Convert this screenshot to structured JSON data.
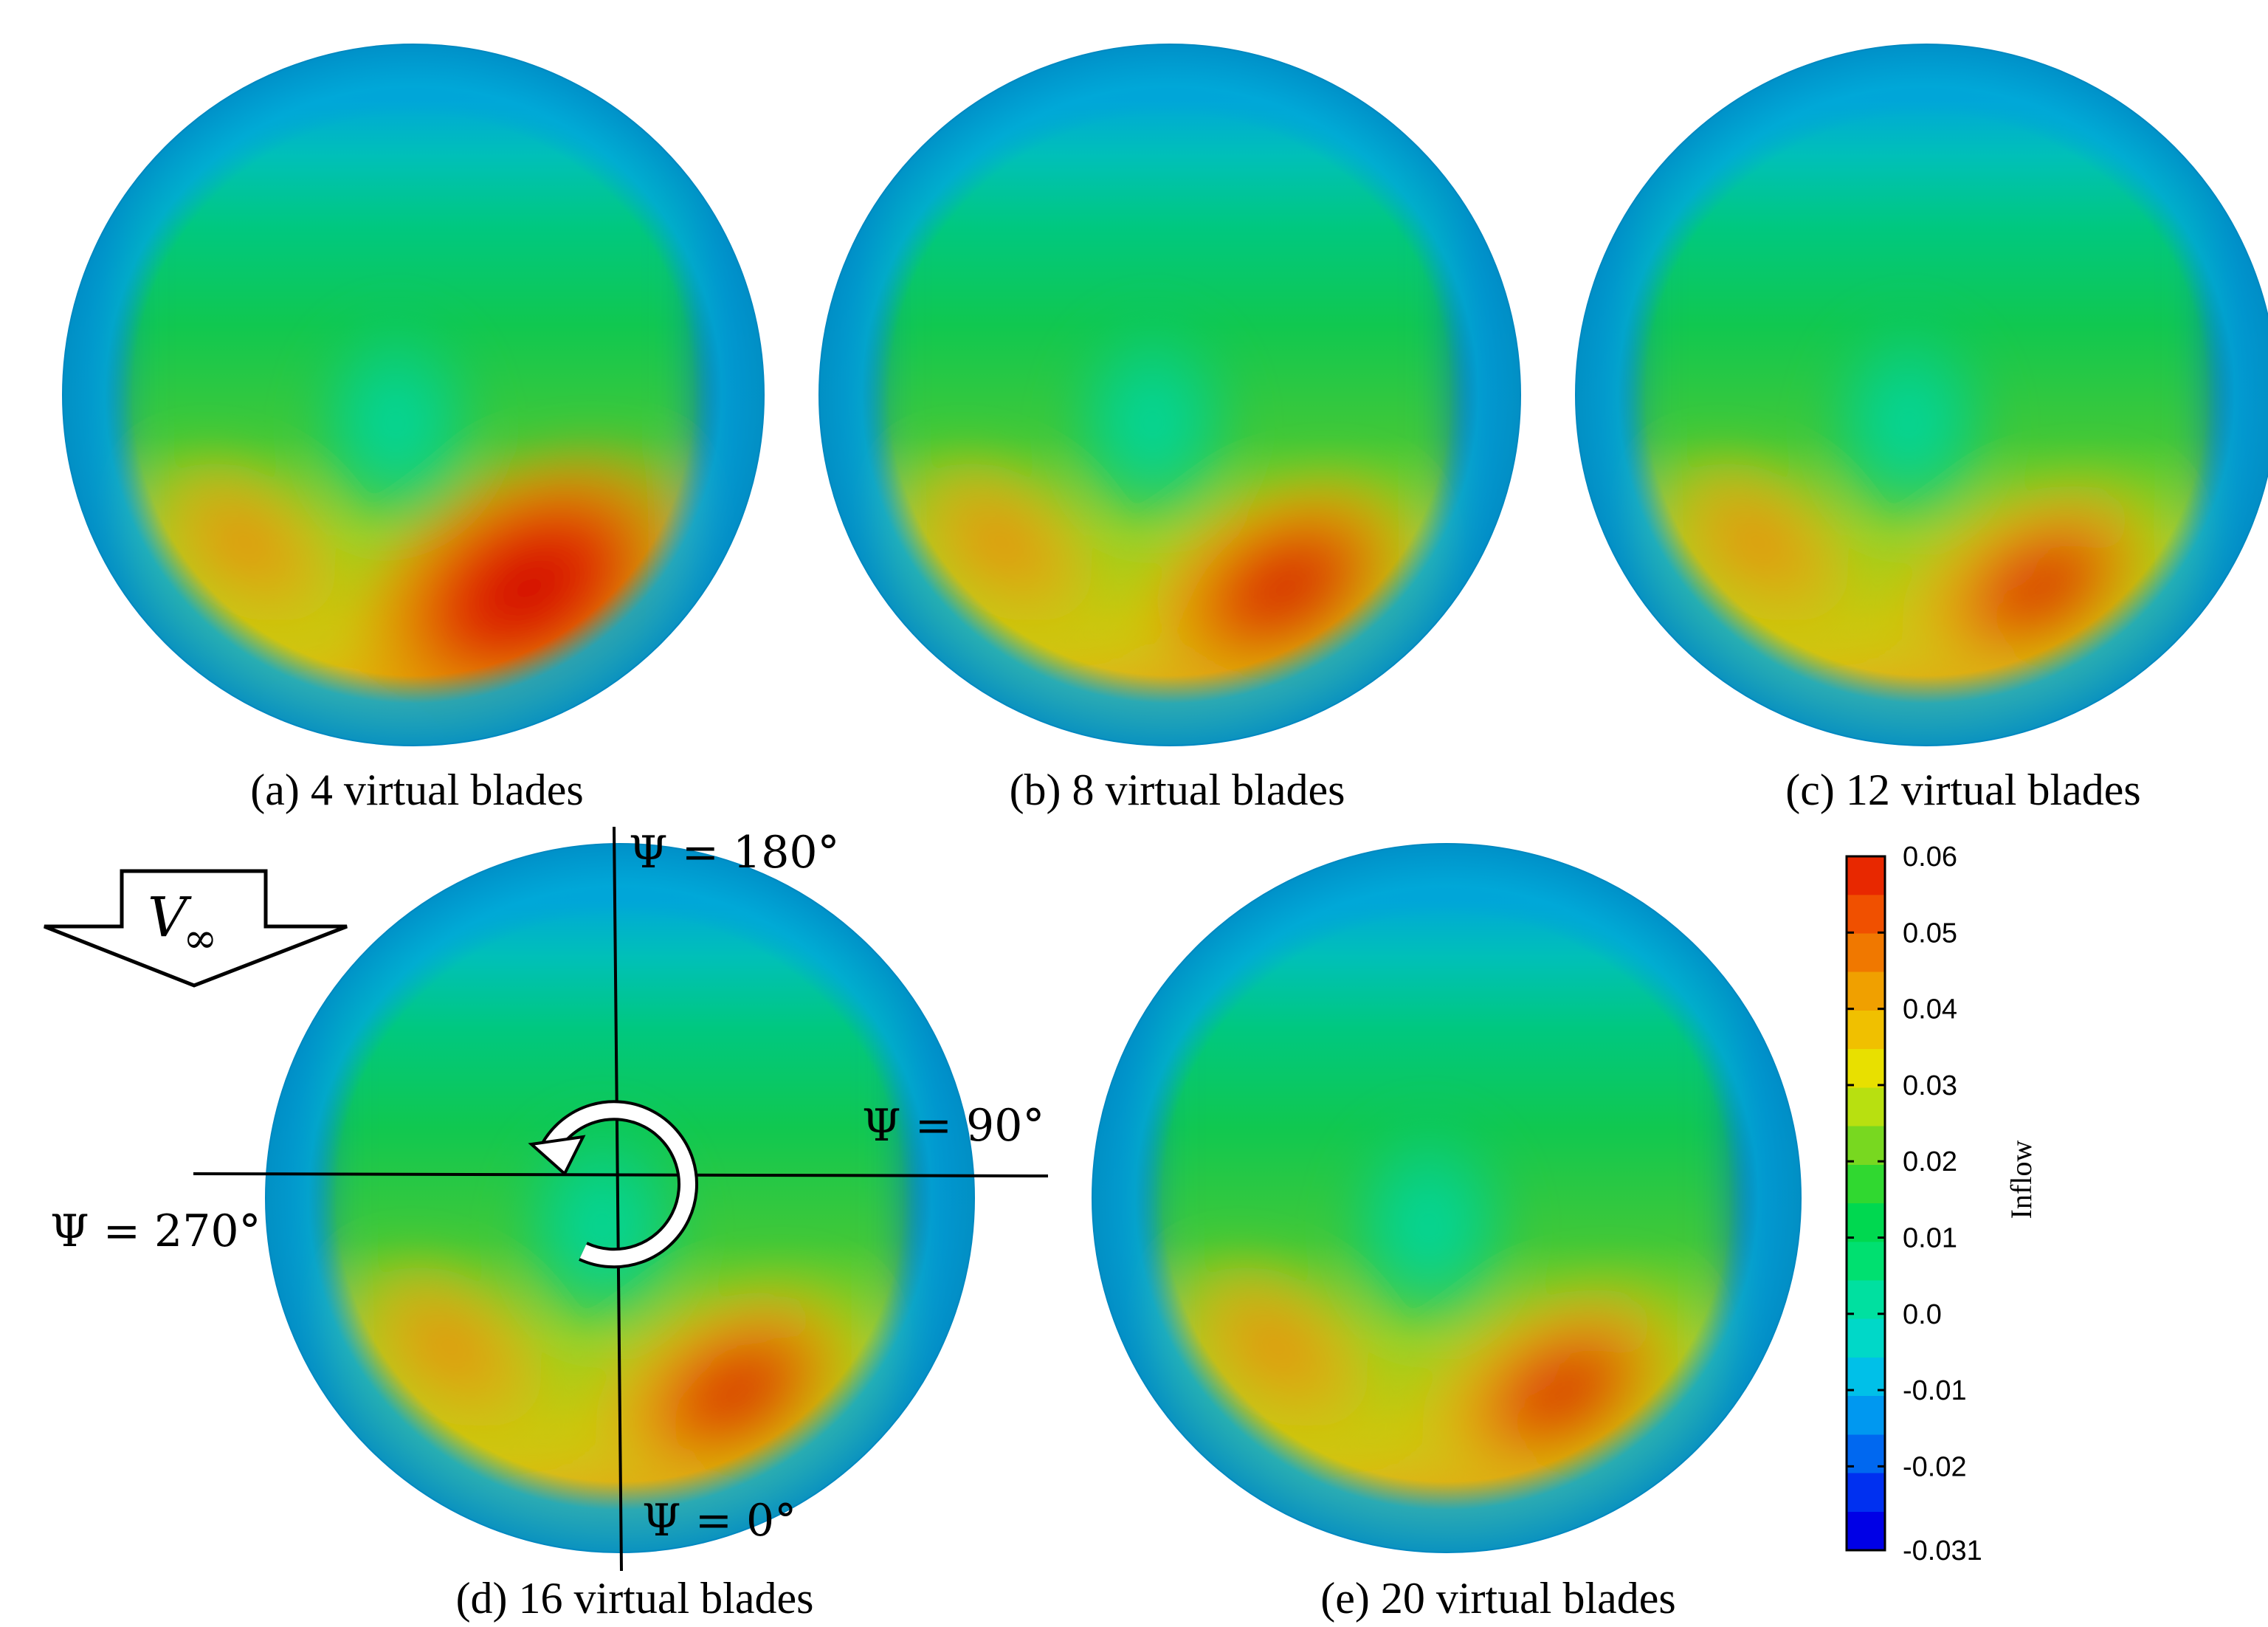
{
  "panels": [
    {
      "id": "a",
      "caption": "(a) 4 virtual blades",
      "hot": 1.0
    },
    {
      "id": "b",
      "caption": "(b) 8 virtual blades",
      "hot": 0.55
    },
    {
      "id": "c",
      "caption": "(c) 12 virtual blades",
      "hot": 0.35
    },
    {
      "id": "d",
      "caption": "(d) 16 virtual blades",
      "hot": 0.4
    },
    {
      "id": "e",
      "caption": "(e) 20 virtual blades",
      "hot": 0.35
    }
  ],
  "freestream": {
    "symbol": "V",
    "subscript": "∞"
  },
  "azimuth": {
    "psi_180": "Ψ = 180°",
    "psi_90": "Ψ = 90°",
    "psi_270": "Ψ = 270°",
    "psi_0": "Ψ = 0°"
  },
  "colorbar": {
    "title": "Inflow",
    "ticks": [
      "0.06",
      "0.05",
      "0.04",
      "0.03",
      "0.02",
      "0.01",
      "0.0",
      "-0.01",
      "-0.02",
      "-0.031"
    ],
    "min": -0.031,
    "max": 0.06,
    "colors": [
      "#0000e6",
      "#0030f0",
      "#0068f0",
      "#0098f0",
      "#00c0e8",
      "#00d8c8",
      "#00e0a0",
      "#00e070",
      "#00d850",
      "#30d830",
      "#78d820",
      "#b8e010",
      "#e8e000",
      "#f0c000",
      "#f0a000",
      "#f07800",
      "#f05000",
      "#e82800",
      "#e00000"
    ]
  }
}
